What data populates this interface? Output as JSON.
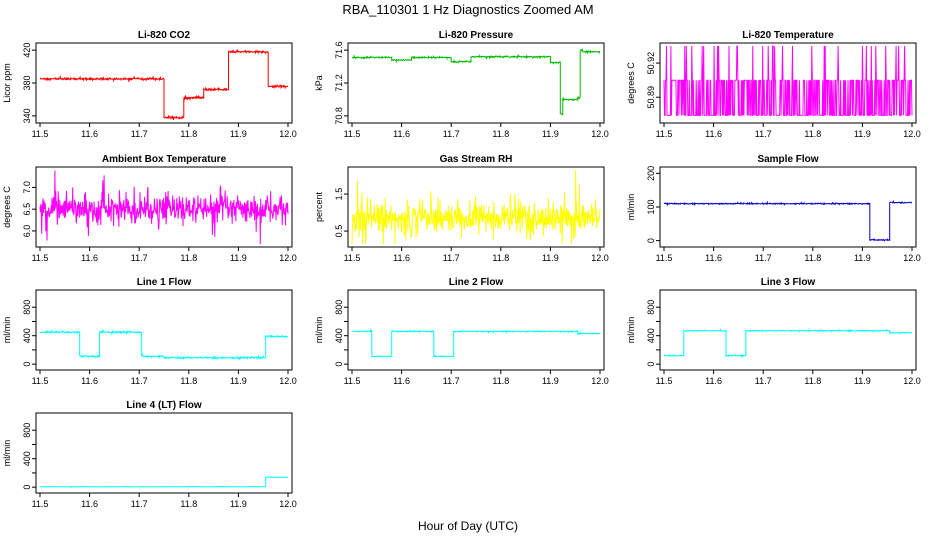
{
  "figure": {
    "title": "RBA_110301  1 Hz Diagnostics Zoomed AM",
    "xlabel": "Hour of Day (UTC)"
  },
  "chart_data": [
    {
      "type": "line",
      "title": "Li-820 CO2",
      "ylabel": "Licor ppm",
      "color": "#ff0000",
      "xlim": [
        11.5,
        12.0
      ],
      "ylim": [
        335,
        425
      ],
      "xticks": [
        "11.5",
        "11.6",
        "11.7",
        "11.8",
        "11.9",
        "12.0"
      ],
      "yticks": [
        "340",
        "380",
        "420"
      ],
      "ytick_values": [
        340,
        380,
        420
      ],
      "noise": 1.2,
      "segments": [
        [
          11.5,
          11.75,
          385
        ],
        [
          11.75,
          11.79,
          338
        ],
        [
          11.79,
          11.83,
          362
        ],
        [
          11.83,
          11.88,
          372
        ],
        [
          11.88,
          11.96,
          418
        ],
        [
          11.96,
          12.0,
          376
        ]
      ]
    },
    {
      "type": "line",
      "title": "Li-820 Pressure",
      "ylabel": "kPa",
      "color": "#00bb00",
      "xlim": [
        11.5,
        12.0
      ],
      "ylim": [
        70.75,
        71.65
      ],
      "xticks": [
        "11.5",
        "11.6",
        "11.7",
        "11.8",
        "11.9",
        "12.0"
      ],
      "yticks": [
        "70.8",
        "71.2",
        "71.6"
      ],
      "ytick_values": [
        70.8,
        71.2,
        71.6
      ],
      "noise": 0.008,
      "segments": [
        [
          11.5,
          11.58,
          71.51
        ],
        [
          11.58,
          11.62,
          71.48
        ],
        [
          11.62,
          11.7,
          71.51
        ],
        [
          11.7,
          11.74,
          71.46
        ],
        [
          11.74,
          11.9,
          71.52
        ],
        [
          11.9,
          11.92,
          71.45
        ],
        [
          11.92,
          11.925,
          70.82
        ],
        [
          11.925,
          11.955,
          71.0
        ],
        [
          11.955,
          11.96,
          71.02
        ],
        [
          11.96,
          11.965,
          71.6
        ],
        [
          11.965,
          12.0,
          71.58
        ]
      ]
    },
    {
      "type": "line",
      "title": "Li-820 Temperature",
      "ylabel": "degrees C",
      "color": "#ff00ff",
      "xlim": [
        11.5,
        12.0
      ],
      "ylim": [
        50.87,
        50.935
      ],
      "xticks": [
        "11.5",
        "11.6",
        "11.7",
        "11.8",
        "11.9",
        "12.0"
      ],
      "yticks": [
        "50.89",
        "50.92"
      ],
      "ytick_values": [
        50.89,
        50.92
      ],
      "levels": [
        50.874,
        50.905,
        50.935
      ],
      "segments": []
    },
    {
      "type": "line",
      "title": "Ambient Box Temperature",
      "ylabel": "degrees C",
      "color": "#ff00ff",
      "xlim": [
        11.5,
        12.0
      ],
      "ylim": [
        5.7,
        7.4
      ],
      "xticks": [
        "11.5",
        "11.6",
        "11.7",
        "11.8",
        "11.9",
        "12.0"
      ],
      "yticks": [
        "6.0",
        "6.5",
        "7.0"
      ],
      "ytick_values": [
        6.0,
        6.5,
        7.0
      ],
      "noise": 0.3,
      "segments": [
        [
          11.5,
          12.0,
          6.5
        ]
      ]
    },
    {
      "type": "line",
      "title": "Gas Stream RH",
      "ylabel": "percent",
      "color": "#ffff00",
      "xlim": [
        11.5,
        12.0
      ],
      "ylim": [
        0.15,
        2.15
      ],
      "xticks": [
        "11.5",
        "11.6",
        "11.7",
        "11.8",
        "11.9",
        "12.0"
      ],
      "yticks": [
        "0.5",
        "1.5"
      ],
      "ytick_values": [
        0.5,
        1.5
      ],
      "noise": 0.4,
      "segments": [
        [
          11.5,
          12.0,
          0.85
        ]
      ]
    },
    {
      "type": "line",
      "title": "Sample Flow",
      "ylabel": "ml/min",
      "color": "#0000cc",
      "xlim": [
        11.5,
        12.0
      ],
      "ylim": [
        -10,
        210
      ],
      "xticks": [
        "11.5",
        "11.6",
        "11.7",
        "11.8",
        "11.9",
        "12.0"
      ],
      "yticks": [
        "0",
        "100",
        "200"
      ],
      "ytick_values": [
        0,
        100,
        200
      ],
      "noise": 1.5,
      "segments": [
        [
          11.5,
          11.915,
          110
        ],
        [
          11.915,
          11.955,
          2
        ],
        [
          11.955,
          12.0,
          113
        ]
      ]
    },
    {
      "type": "line",
      "title": "Line 1 Flow",
      "ylabel": "ml/min",
      "color": "#00ffff",
      "xlim": [
        11.5,
        12.0
      ],
      "ylim": [
        -40,
        1000
      ],
      "xticks": [
        "11.5",
        "11.6",
        "11.7",
        "11.8",
        "11.9",
        "12.0"
      ],
      "yticks": [
        "0",
        "400",
        "800"
      ],
      "ytick_values": [
        0,
        200,
        400,
        600,
        800
      ],
      "ytick_all": [
        "0",
        "",
        "400",
        "",
        "800"
      ],
      "noise": 10,
      "segments": [
        [
          11.5,
          11.58,
          450
        ],
        [
          11.58,
          11.62,
          110
        ],
        [
          11.62,
          11.705,
          450
        ],
        [
          11.705,
          11.75,
          110
        ],
        [
          11.75,
          11.955,
          90
        ],
        [
          11.955,
          12.0,
          390
        ]
      ]
    },
    {
      "type": "line",
      "title": "Line 2 Flow",
      "ylabel": "ml/min",
      "color": "#00ffff",
      "xlim": [
        11.5,
        12.0
      ],
      "ylim": [
        -40,
        1000
      ],
      "xticks": [
        "11.5",
        "11.6",
        "11.7",
        "11.8",
        "11.9",
        "12.0"
      ],
      "yticks": [
        "0",
        "400",
        "800"
      ],
      "ytick_values": [
        0,
        200,
        400,
        600,
        800
      ],
      "ytick_all": [
        "0",
        "",
        "400",
        "",
        "800"
      ],
      "noise": 6,
      "segments": [
        [
          11.5,
          11.54,
          460
        ],
        [
          11.54,
          11.58,
          110
        ],
        [
          11.58,
          11.665,
          460
        ],
        [
          11.665,
          11.705,
          110
        ],
        [
          11.705,
          11.955,
          460
        ],
        [
          11.955,
          12.0,
          430
        ]
      ]
    },
    {
      "type": "line",
      "title": "Line 3 Flow",
      "ylabel": "ml/min",
      "color": "#00ffff",
      "xlim": [
        11.5,
        12.0
      ],
      "ylim": [
        -40,
        1000
      ],
      "xticks": [
        "11.5",
        "11.6",
        "11.7",
        "11.8",
        "11.9",
        "12.0"
      ],
      "yticks": [
        "0",
        "400",
        "800"
      ],
      "ytick_values": [
        0,
        200,
        400,
        600,
        800
      ],
      "ytick_all": [
        "0",
        "",
        "400",
        "",
        "800"
      ],
      "noise": 6,
      "segments": [
        [
          11.5,
          11.54,
          120
        ],
        [
          11.54,
          11.625,
          470
        ],
        [
          11.625,
          11.665,
          120
        ],
        [
          11.665,
          11.955,
          470
        ],
        [
          11.955,
          12.0,
          440
        ]
      ]
    },
    {
      "type": "line",
      "title": "Line 4 (LT) Flow",
      "ylabel": "ml/min",
      "color": "#00ffff",
      "xlim": [
        11.5,
        12.0
      ],
      "ylim": [
        -40,
        1000
      ],
      "xticks": [
        "11.5",
        "11.6",
        "11.7",
        "11.8",
        "11.9",
        "12.0"
      ],
      "yticks": [
        "0",
        "400",
        "800"
      ],
      "ytick_values": [
        0,
        200,
        400,
        600,
        800
      ],
      "ytick_all": [
        "0",
        "",
        "400",
        "",
        "800"
      ],
      "noise": 2,
      "segments": [
        [
          11.5,
          11.955,
          5
        ],
        [
          11.955,
          12.0,
          140
        ]
      ]
    }
  ]
}
